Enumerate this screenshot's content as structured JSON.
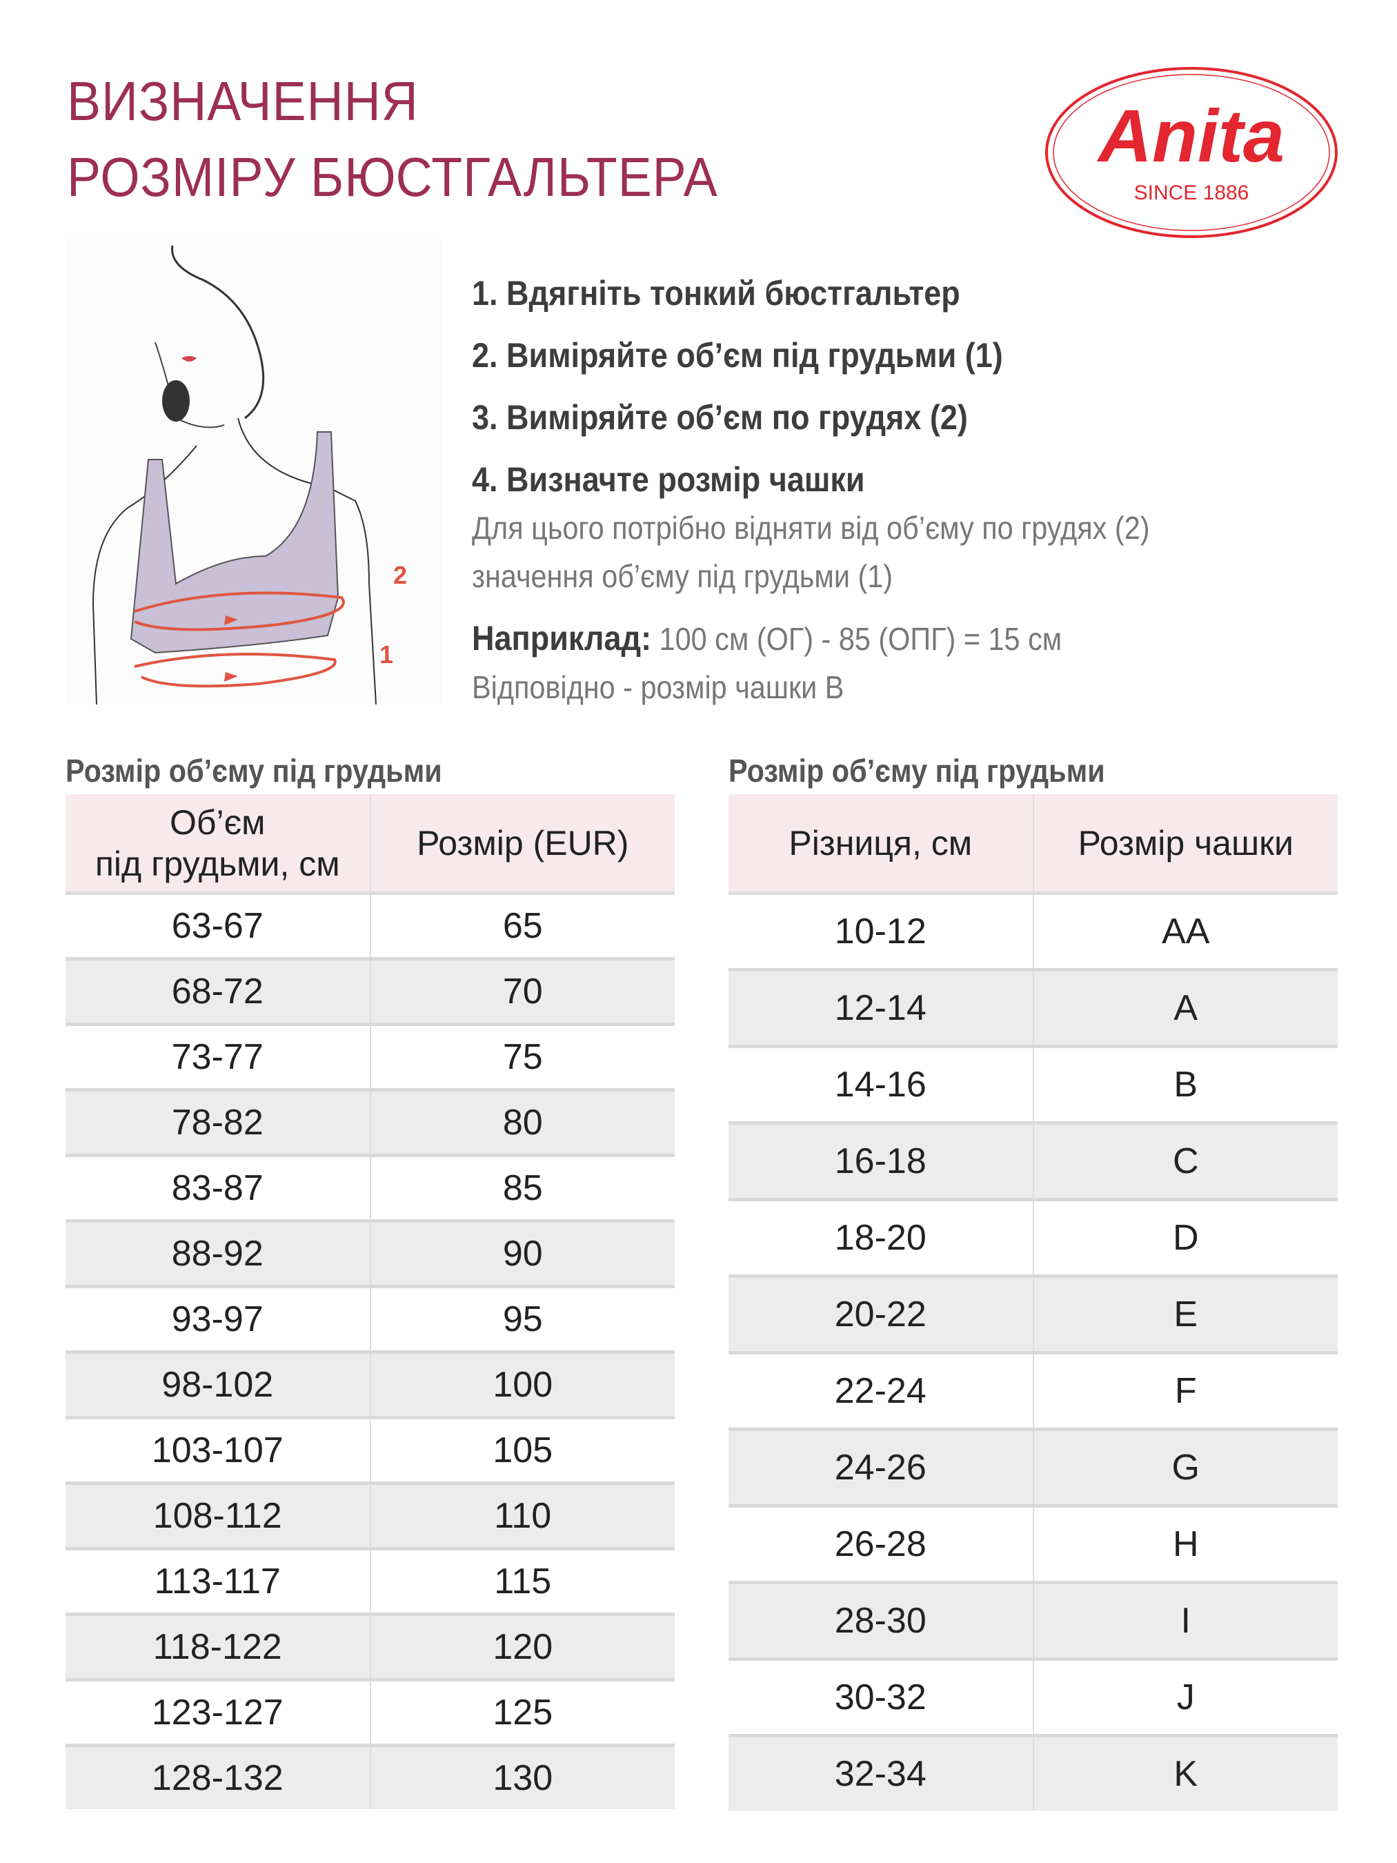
{
  "header": {
    "title_line1": "ВИЗНАЧЕННЯ",
    "title_line2": "РОЗМІРУ БЮСТГАЛЬТЕРА"
  },
  "logo": {
    "brand": "Anita",
    "since": "SINCE 1886",
    "color": "#e3262f"
  },
  "illustration": {
    "marker1": "1",
    "marker2": "2"
  },
  "steps": [
    "1. Вдягніть тонкий бюстгальтер",
    "2. Виміряйте об’єм під грудьми (1)",
    "3. Виміряйте об’єм по грудях (2)",
    "4. Визначте розмір чашки"
  ],
  "note": {
    "line1": "Для цього потрібно відняти від об’єму по грудях (2)",
    "line2": "значення об’єму під грудьми (1)",
    "example_label": "Наприклад:",
    "example_value": "100 см (ОГ) - 85 (ОПГ) = 15 см",
    "result": "Відповідно - розмір чашки В"
  },
  "band_table": {
    "title": "Розмір об’єму під грудьми",
    "headers": [
      "Об’єм",
      "під грудьми, см",
      "Розмір (EUR)"
    ],
    "rows": [
      [
        "63-67",
        "65"
      ],
      [
        "68-72",
        "70"
      ],
      [
        "73-77",
        "75"
      ],
      [
        "78-82",
        "80"
      ],
      [
        "83-87",
        "85"
      ],
      [
        "88-92",
        "90"
      ],
      [
        "93-97",
        "95"
      ],
      [
        "98-102",
        "100"
      ],
      [
        "103-107",
        "105"
      ],
      [
        "108-112",
        "110"
      ],
      [
        "113-117",
        "115"
      ],
      [
        "118-122",
        "120"
      ],
      [
        "123-127",
        "125"
      ],
      [
        "128-132",
        "130"
      ]
    ]
  },
  "cup_table": {
    "title": "Розмір об’єму під грудьми",
    "headers": [
      "Різниця, см",
      "Розмір чашки"
    ],
    "rows": [
      [
        "10-12",
        "AA"
      ],
      [
        "12-14",
        "A"
      ],
      [
        "14-16",
        "B"
      ],
      [
        "16-18",
        "C"
      ],
      [
        "18-20",
        "D"
      ],
      [
        "20-22",
        "E"
      ],
      [
        "22-24",
        "F"
      ],
      [
        "24-26",
        "G"
      ],
      [
        "26-28",
        "H"
      ],
      [
        "28-30",
        "I"
      ],
      [
        "30-32",
        "J"
      ],
      [
        "32-34",
        "K"
      ]
    ]
  },
  "colors": {
    "title": "#9c2f52",
    "header_bg": "#f7e9ec",
    "row_alt": "#ececec",
    "bra": "#c9bfd6",
    "arrow": "#e05540"
  }
}
